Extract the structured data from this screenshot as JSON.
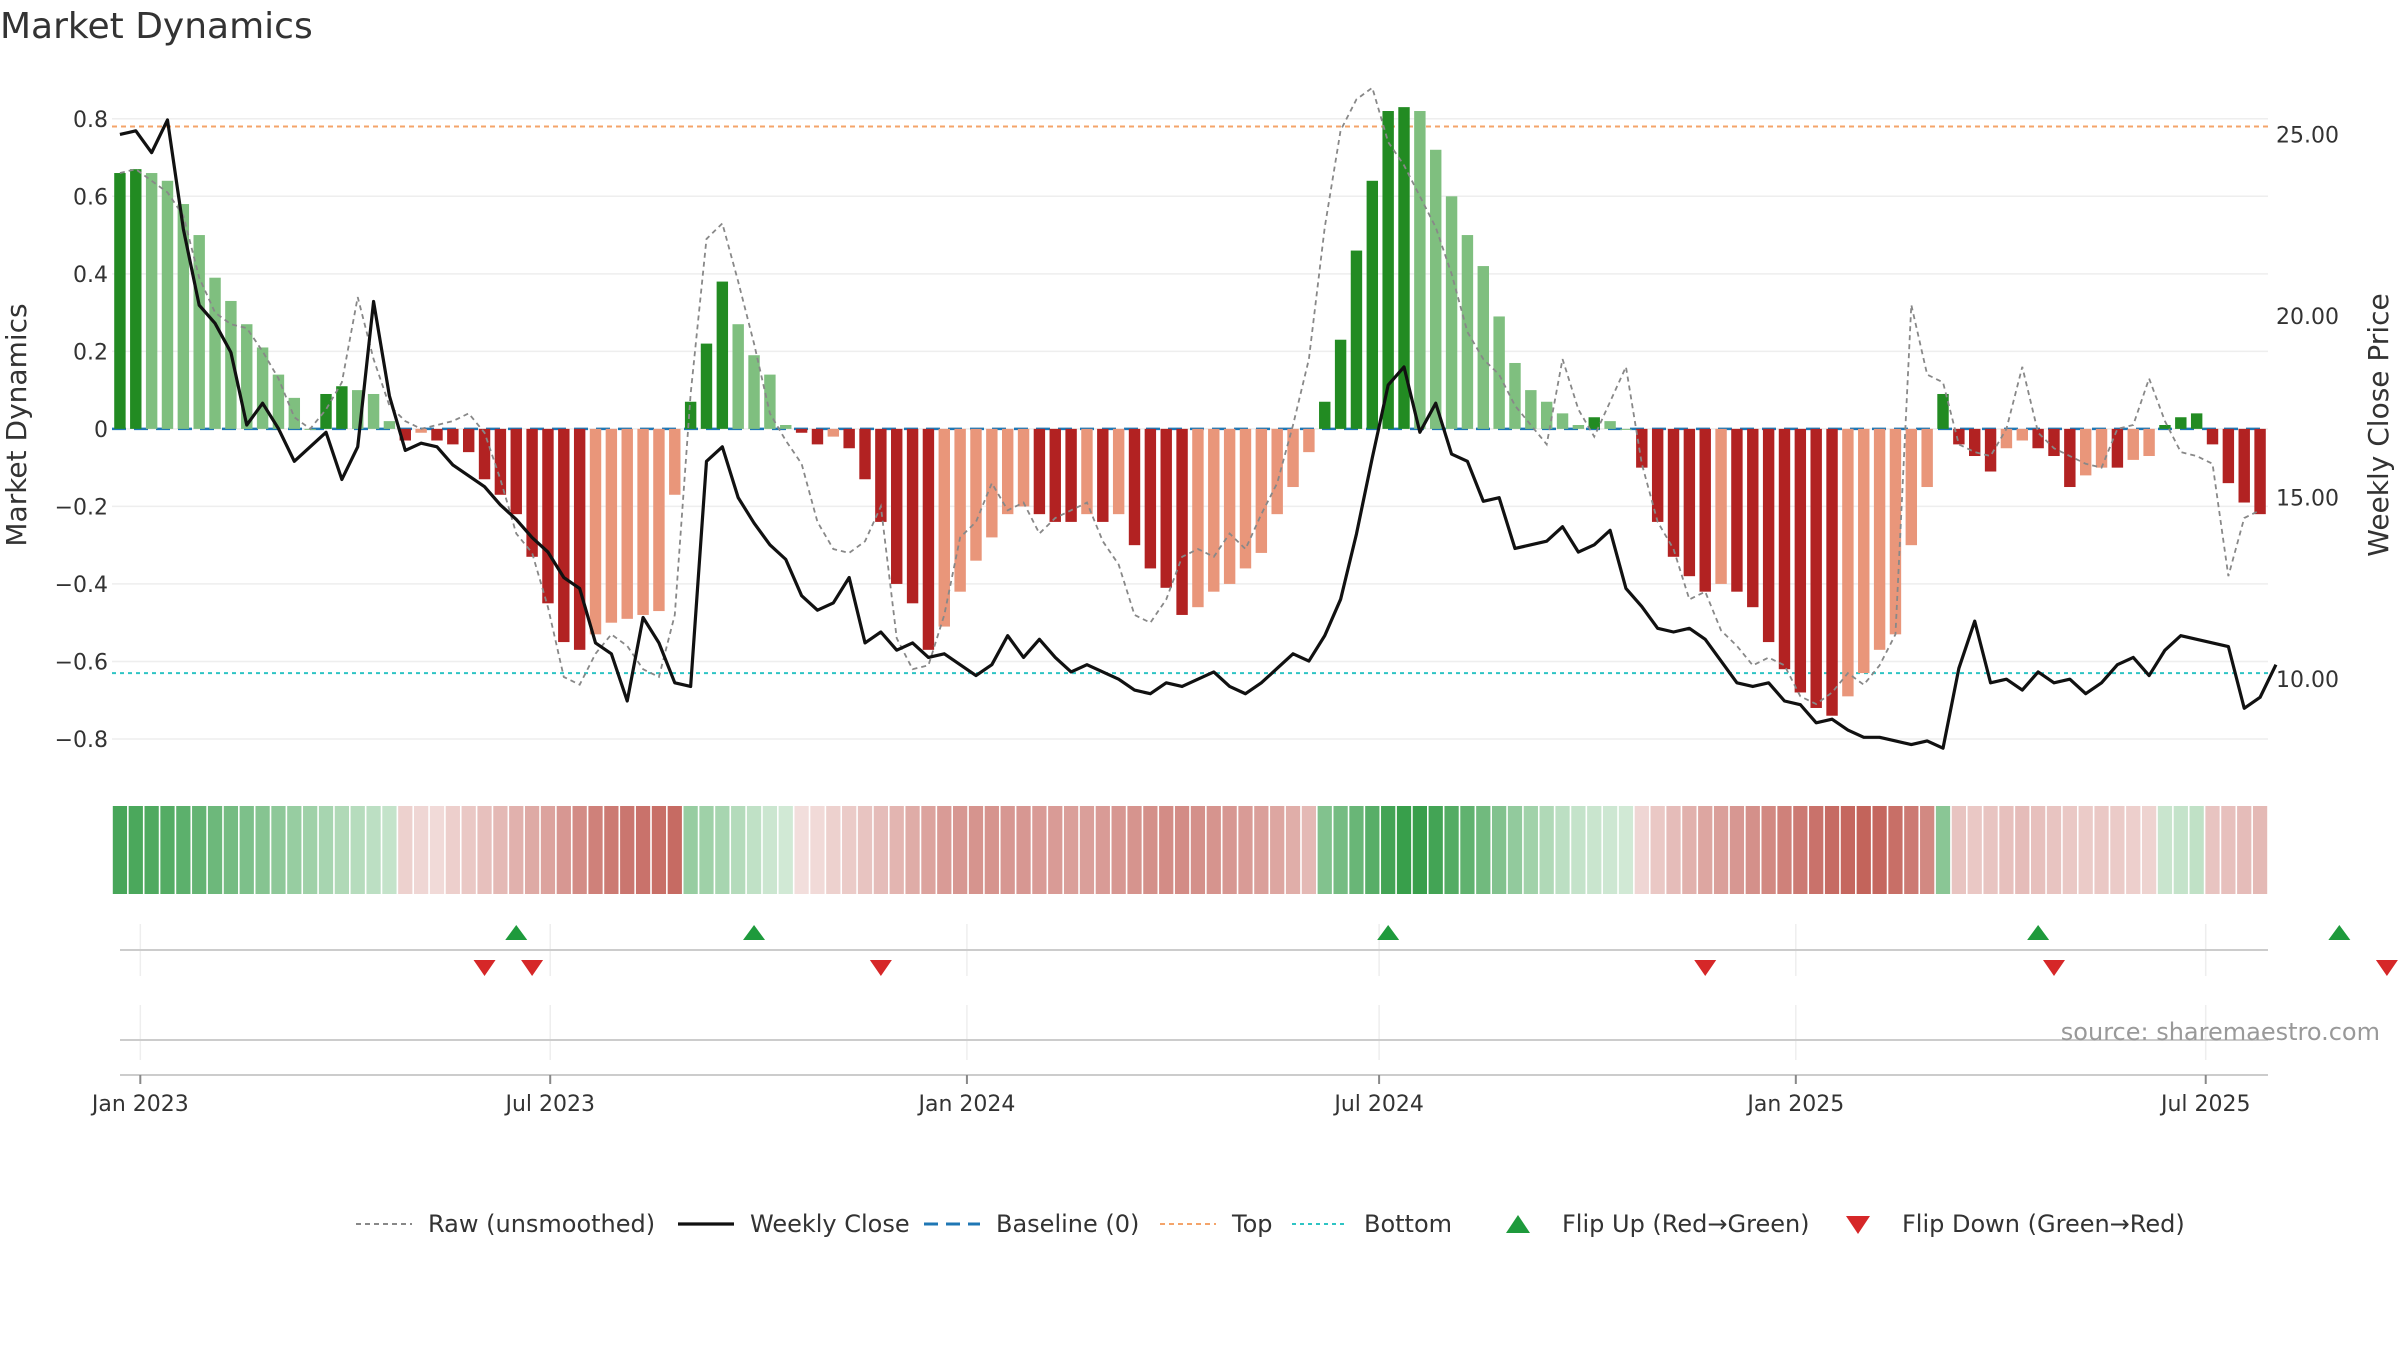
{
  "chart_data": {
    "type": "bar",
    "title": "Market Dynamics",
    "ylabel": "Market Dynamics",
    "y2label": "Weekly Close Price",
    "source": "source: sharemaestro.com",
    "ylim": [
      -0.88,
      0.9
    ],
    "y2lim": [
      7.5,
      26.5
    ],
    "yticks": [
      0.8,
      0.6,
      0.4,
      0.2,
      0,
      -0.2,
      -0.4,
      -0.6,
      -0.8
    ],
    "ytick_labels": [
      "0.8",
      "0.6",
      "0.4",
      "0.2",
      "0",
      "−0.2",
      "−0.4",
      "−0.6",
      "−0.8"
    ],
    "y2ticks": [
      25,
      20,
      15,
      10
    ],
    "y2tick_labels": [
      "25.00",
      "20.00",
      "15.00",
      "10.00"
    ],
    "xticks": [
      {
        "date": "2023-01-01",
        "label": "Jan 2023"
      },
      {
        "date": "2023-07-01",
        "label": "Jul 2023"
      },
      {
        "date": "2024-01-01",
        "label": "Jan 2024"
      },
      {
        "date": "2024-07-01",
        "label": "Jul 2024"
      },
      {
        "date": "2025-01-01",
        "label": "Jan 2025"
      },
      {
        "date": "2025-07-01",
        "label": "Jul 2025"
      }
    ],
    "first_week": "2022-12-23",
    "top_line": 0.78,
    "bottom_line": -0.63,
    "grid": true,
    "legend_position": "bottom",
    "legend": [
      {
        "key": "raw",
        "label": "Raw (unsmoothed)"
      },
      {
        "key": "close",
        "label": "Weekly Close"
      },
      {
        "key": "baseline",
        "label": "Baseline (0)"
      },
      {
        "key": "top",
        "label": "Top"
      },
      {
        "key": "bottom",
        "label": "Bottom"
      },
      {
        "key": "flip_up",
        "label": "Flip Up (Red→Green)"
      },
      {
        "key": "flip_down",
        "label": "Flip Down (Green→Red)"
      }
    ],
    "colors": {
      "green_strong": "#228b22",
      "green_light": "#7fbf7f",
      "red_strong": "#b22222",
      "red_light": "#e9967a",
      "raw": "#888888",
      "close": "#111111",
      "baseline": "#1f77b4",
      "top": "#f4a46a",
      "bottom": "#2ec4c4",
      "flip_up": "#1e9a3c",
      "flip_down": "#d62728"
    },
    "series": [
      {
        "name": "Market Dynamics",
        "values": [
          0.66,
          0.67,
          0.66,
          0.64,
          0.58,
          0.5,
          0.39,
          0.33,
          0.27,
          0.21,
          0.14,
          0.08,
          0.0,
          0.09,
          0.11,
          0.1,
          0.09,
          0.02,
          -0.03,
          -0.01,
          -0.03,
          -0.04,
          -0.06,
          -0.13,
          -0.17,
          -0.22,
          -0.33,
          -0.45,
          -0.55,
          -0.57,
          -0.53,
          -0.5,
          -0.49,
          -0.48,
          -0.47,
          -0.17,
          0.07,
          0.22,
          0.38,
          0.27,
          0.19,
          0.14,
          0.01,
          -0.01,
          -0.04,
          -0.02,
          -0.05,
          -0.13,
          -0.24,
          -0.4,
          -0.45,
          -0.57,
          -0.51,
          -0.42,
          -0.34,
          -0.28,
          -0.22,
          -0.2,
          -0.22,
          -0.24,
          -0.24,
          -0.22,
          -0.24,
          -0.22,
          -0.3,
          -0.36,
          -0.41,
          -0.48,
          -0.46,
          -0.42,
          -0.4,
          -0.36,
          -0.32,
          -0.22,
          -0.15,
          -0.06,
          0.07,
          0.23,
          0.46,
          0.64,
          0.82,
          0.83,
          0.82,
          0.72,
          0.6,
          0.5,
          0.42,
          0.29,
          0.17,
          0.1,
          0.07,
          0.04,
          0.01,
          0.03,
          0.02,
          0.0,
          -0.1,
          -0.24,
          -0.33,
          -0.38,
          -0.42,
          -0.4,
          -0.42,
          -0.46,
          -0.55,
          -0.62,
          -0.68,
          -0.72,
          -0.74,
          -0.69,
          -0.63,
          -0.57,
          -0.53,
          -0.3,
          -0.15,
          0.09,
          -0.04,
          -0.07,
          -0.11,
          -0.05,
          -0.03,
          -0.05,
          -0.07,
          -0.15,
          -0.12,
          -0.1,
          -0.1,
          -0.08,
          -0.07,
          0.01,
          0.03,
          0.04,
          -0.04,
          -0.14,
          -0.19,
          -0.22
        ]
      },
      {
        "name": "Raw (unsmoothed)",
        "values": [
          0.66,
          0.67,
          0.64,
          0.61,
          0.55,
          0.39,
          0.3,
          0.27,
          0.26,
          0.2,
          0.13,
          0.03,
          0.0,
          0.05,
          0.12,
          0.34,
          0.18,
          0.06,
          0.02,
          0.0,
          0.01,
          0.02,
          0.04,
          -0.01,
          -0.13,
          -0.27,
          -0.32,
          -0.46,
          -0.64,
          -0.66,
          -0.58,
          -0.53,
          -0.56,
          -0.62,
          -0.64,
          -0.48,
          0.09,
          0.49,
          0.53,
          0.38,
          0.22,
          0.04,
          -0.03,
          -0.09,
          -0.24,
          -0.31,
          -0.32,
          -0.29,
          -0.2,
          -0.54,
          -0.62,
          -0.61,
          -0.48,
          -0.28,
          -0.24,
          -0.14,
          -0.21,
          -0.19,
          -0.27,
          -0.23,
          -0.21,
          -0.19,
          -0.29,
          -0.35,
          -0.48,
          -0.5,
          -0.44,
          -0.33,
          -0.31,
          -0.33,
          -0.27,
          -0.31,
          -0.22,
          -0.14,
          0.01,
          0.18,
          0.52,
          0.77,
          0.85,
          0.88,
          0.74,
          0.68,
          0.6,
          0.52,
          0.4,
          0.25,
          0.18,
          0.14,
          0.06,
          0.01,
          -0.04,
          0.18,
          0.05,
          -0.02,
          0.07,
          0.16,
          -0.09,
          -0.24,
          -0.31,
          -0.44,
          -0.42,
          -0.52,
          -0.56,
          -0.61,
          -0.59,
          -0.61,
          -0.69,
          -0.71,
          -0.68,
          -0.63,
          -0.66,
          -0.61,
          -0.53,
          0.32,
          0.14,
          0.12,
          -0.04,
          -0.06,
          -0.07,
          0.0,
          0.16,
          -0.01,
          -0.05,
          -0.07,
          -0.09,
          -0.1,
          0.0,
          0.01,
          0.13,
          0.02,
          -0.06,
          -0.07,
          -0.09,
          -0.38,
          -0.23,
          -0.21
        ]
      },
      {
        "name": "Weekly Close",
        "values": [
          25.0,
          25.1,
          24.5,
          25.4,
          22.4,
          20.3,
          19.8,
          19.0,
          17.0,
          17.6,
          16.9,
          16.0,
          16.4,
          16.8,
          15.5,
          16.4,
          20.4,
          17.8,
          16.3,
          16.5,
          16.4,
          15.9,
          15.6,
          15.3,
          14.8,
          14.4,
          13.9,
          13.5,
          12.8,
          12.5,
          11.0,
          10.7,
          9.4,
          11.7,
          11.0,
          9.9,
          9.8,
          16.0,
          16.4,
          15.0,
          14.3,
          13.7,
          13.3,
          12.3,
          11.9,
          12.1,
          12.8,
          11.0,
          11.3,
          10.8,
          11.0,
          10.6,
          10.7,
          10.4,
          10.1,
          10.4,
          11.2,
          10.6,
          11.1,
          10.6,
          10.2,
          10.4,
          10.2,
          10.0,
          9.7,
          9.6,
          9.9,
          9.8,
          10.0,
          10.2,
          9.8,
          9.6,
          9.9,
          10.3,
          10.7,
          10.5,
          11.2,
          12.2,
          14.0,
          16.1,
          18.1,
          18.6,
          16.8,
          17.6,
          16.2,
          16.0,
          14.9,
          15.0,
          13.6,
          13.7,
          13.8,
          14.2,
          13.5,
          13.7,
          14.1,
          12.5,
          12.0,
          11.4,
          11.3,
          11.4,
          11.1,
          10.5,
          9.9,
          9.8,
          9.9,
          9.4,
          9.3,
          8.8,
          8.9,
          8.6,
          8.4,
          8.4,
          8.3,
          8.2,
          8.3,
          8.1,
          10.3,
          11.6,
          9.9,
          10.0,
          9.7,
          10.2,
          9.9,
          10.0,
          9.6,
          9.9,
          10.4,
          10.6,
          10.1,
          10.8,
          11.2,
          11.1,
          11.0,
          10.9,
          9.2,
          9.5,
          10.4
        ]
      }
    ],
    "strip_intensity": [
      0.88,
      0.86,
      0.84,
      0.82,
      0.78,
      0.74,
      0.7,
      0.66,
      0.62,
      0.58,
      0.54,
      0.5,
      0.46,
      0.42,
      0.38,
      0.35,
      0.32,
      0.28,
      0.25,
      0.22,
      0.2,
      0.26,
      0.3,
      0.34,
      0.38,
      0.42,
      0.46,
      0.5,
      0.56,
      0.62,
      0.68,
      0.72,
      0.74,
      0.76,
      0.78,
      0.8,
      0.5,
      0.46,
      0.42,
      0.36,
      0.3,
      0.25,
      0.22,
      0.18,
      0.2,
      0.25,
      0.28,
      0.32,
      0.36,
      0.4,
      0.45,
      0.5,
      0.54,
      0.56,
      0.58,
      0.58,
      0.56,
      0.56,
      0.54,
      0.54,
      0.52,
      0.52,
      0.54,
      0.56,
      0.58,
      0.6,
      0.62,
      0.62,
      0.6,
      0.58,
      0.56,
      0.54,
      0.52,
      0.48,
      0.44,
      0.38,
      0.6,
      0.66,
      0.72,
      0.8,
      0.9,
      0.95,
      0.95,
      0.9,
      0.82,
      0.76,
      0.68,
      0.6,
      0.52,
      0.45,
      0.38,
      0.32,
      0.28,
      0.26,
      0.24,
      0.22,
      0.22,
      0.3,
      0.36,
      0.42,
      0.48,
      0.52,
      0.56,
      0.6,
      0.64,
      0.68,
      0.72,
      0.76,
      0.8,
      0.82,
      0.84,
      0.82,
      0.78,
      0.72,
      0.64,
      0.56,
      0.32,
      0.3,
      0.32,
      0.34,
      0.36,
      0.34,
      0.32,
      0.3,
      0.28,
      0.3,
      0.28,
      0.26,
      0.24,
      0.26,
      0.28,
      0.3,
      0.32,
      0.34,
      0.36,
      0.38,
      0.4
    ],
    "flips_up": [
      "2023-06-16",
      "2023-09-29",
      "2024-07-05",
      "2025-04-18",
      "2025-08-29"
    ],
    "flips_down": [
      "2023-06-02",
      "2023-06-23",
      "2023-11-24",
      "2024-11-22",
      "2025-04-25",
      "2025-09-19"
    ]
  }
}
